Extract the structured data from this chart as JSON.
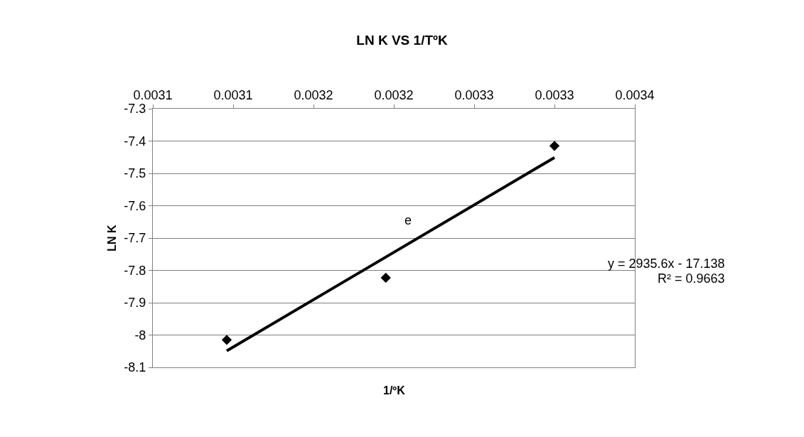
{
  "chart_data": {
    "type": "scatter",
    "title": "LN K VS 1/TºK",
    "xlabel": "1/ºK",
    "ylabel": "LN K",
    "x": [
      0.003096,
      0.003195,
      0.0033
    ],
    "series": [
      {
        "color": "#000000",
        "marker": "diamond",
        "values": [
          -8.015,
          -7.823,
          -7.415
        ]
      },
      {
        "type": "line",
        "color": "#000000",
        "x": [
          0.003096,
          0.0033
        ],
        "values": [
          -8.049,
          -7.451
        ]
      }
    ],
    "xlim": [
      0.00305,
      0.00335
    ],
    "xticks": [
      {
        "value": 0.00305,
        "label": "0.0031"
      },
      {
        "value": 0.0031,
        "label": "0.0031"
      },
      {
        "value": 0.00315,
        "label": "0.0032"
      },
      {
        "value": 0.0032,
        "label": "0.0032"
      },
      {
        "value": 0.00325,
        "label": "0.0033"
      },
      {
        "value": 0.0033,
        "label": "0.0033"
      },
      {
        "value": 0.00335,
        "label": "0.0034"
      }
    ],
    "ylim": [
      -8.1,
      -7.3
    ],
    "yticks": [
      -8.1,
      -8,
      -7.9,
      -7.8,
      -7.7,
      -7.6,
      -7.5,
      -7.4,
      -7.3
    ],
    "annotations": [
      "e",
      "y = 2935.6x - 17.138",
      "R² = 0.9663"
    ],
    "grid": "y"
  }
}
